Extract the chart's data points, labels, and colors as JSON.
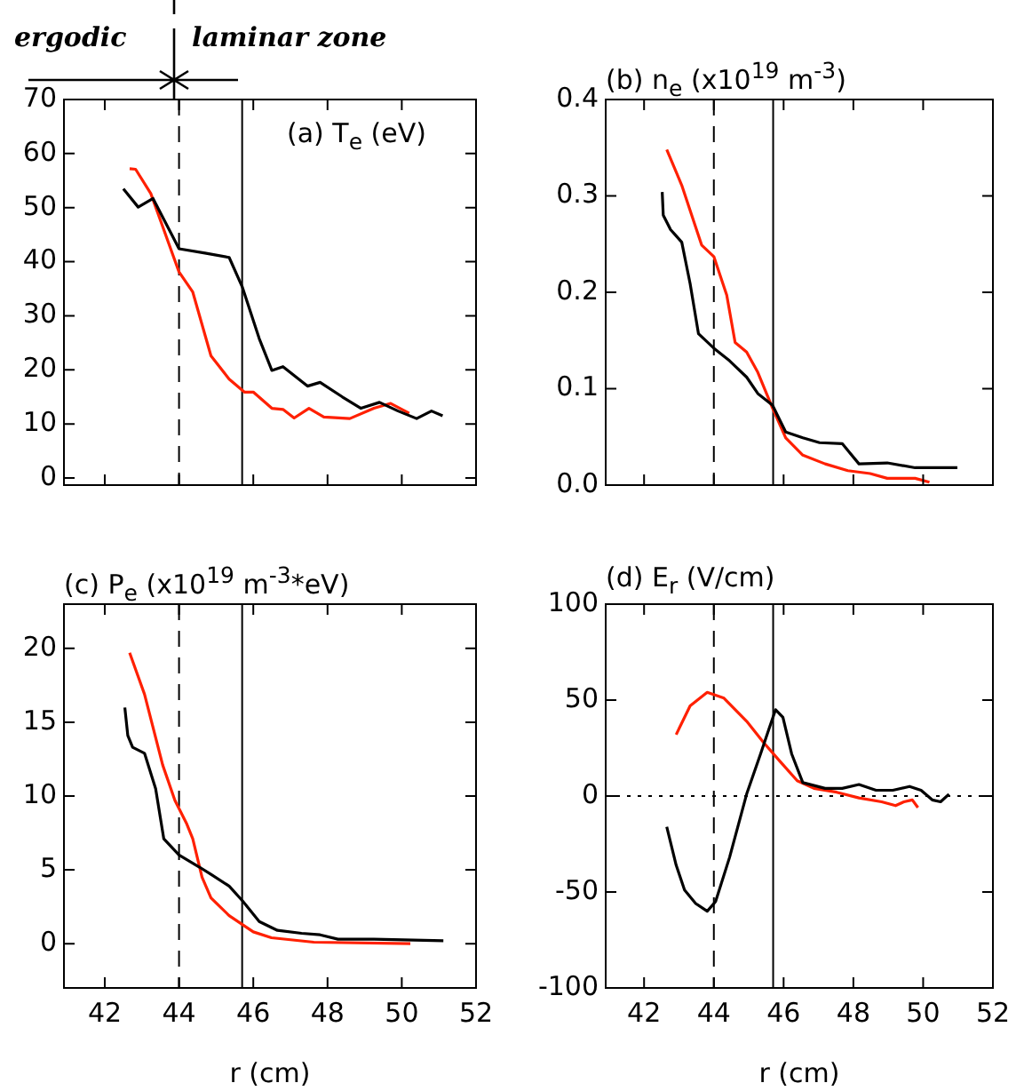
{
  "chart_data": [
    {
      "type": "line",
      "title": "(a) T$_{e}$ (eV)",
      "annotations": [
        "ergodic",
        "laminar zone"
      ],
      "xlim": [
        40.9,
        52
      ],
      "xticks": [
        42,
        44,
        46,
        48,
        50,
        52
      ],
      "ylim": [
        -1.3,
        70
      ],
      "yticks": [
        0,
        10,
        20,
        30,
        40,
        50,
        60,
        70
      ],
      "tick_labels": "y",
      "legend": false,
      "grid": false,
      "marker": "none",
      "line_style": "solid",
      "ref_lines": [
        {
          "axis": "x",
          "value": 44,
          "line_style": "dashed",
          "color": "#000000"
        },
        {
          "axis": "x",
          "value": 45.7,
          "line_style": "solid",
          "color": "#000000"
        }
      ],
      "series": [
        {
          "color": "#000000",
          "x": [
            42.5,
            42.9,
            43.3,
            44,
            44.7,
            45.35,
            45.7,
            46.16,
            46.5,
            46.8,
            47.46,
            47.8,
            48.4,
            48.9,
            49.4,
            49.9,
            50.4,
            50.8,
            51.1
          ],
          "values": [
            53.5,
            50.1,
            51.7,
            42.4,
            41.6,
            40.8,
            35.4,
            25.8,
            19.9,
            20.6,
            17,
            17.7,
            15,
            12.9,
            14,
            12.4,
            11,
            12.4,
            11.5
          ]
        },
        {
          "color": "#ff2000",
          "x": [
            42.67,
            42.83,
            43.24,
            44,
            44.37,
            44.86,
            45.35,
            45.76,
            46,
            46.5,
            46.8,
            47.1,
            47.5,
            47.9,
            48.6,
            49.25,
            49.7,
            50.2
          ],
          "values": [
            57.2,
            57.1,
            52.6,
            38.1,
            34.4,
            22.6,
            18.3,
            15.9,
            15.9,
            12.9,
            12.7,
            11.1,
            12.9,
            11.3,
            11,
            12.9,
            13.8,
            12
          ]
        }
      ]
    },
    {
      "type": "line",
      "title": "(b) n$_{e}$ (x10$^{19}$ m$^{-3}$)",
      "xlim": [
        40.9,
        52
      ],
      "xticks": [
        42,
        44,
        46,
        48,
        50,
        52
      ],
      "ylim": [
        0,
        0.4
      ],
      "yticks": [
        {
          "value": 0,
          "label": "0.0"
        },
        0.1,
        0.2,
        0.3,
        0.4
      ],
      "tick_labels": "y",
      "legend": false,
      "grid": false,
      "marker": "none",
      "line_style": "solid",
      "ref_lines": [
        {
          "axis": "x",
          "value": 44,
          "line_style": "dashed",
          "color": "#000000"
        },
        {
          "axis": "x",
          "value": 45.7,
          "line_style": "solid",
          "color": "#000000"
        }
      ],
      "series": [
        {
          "color": "#000000",
          "x": [
            42.52,
            42.55,
            42.76,
            43.08,
            43.32,
            43.56,
            44,
            44.45,
            44.94,
            45.26,
            45.68,
            46.06,
            46.55,
            47.03,
            47.68,
            48.16,
            48.97,
            49.77,
            50.98
          ],
          "values": [
            0.304,
            0.28,
            0.265,
            0.252,
            0.209,
            0.157,
            0.142,
            0.129,
            0.112,
            0.095,
            0.083,
            0.055,
            0.049,
            0.044,
            0.043,
            0.022,
            0.023,
            0.018,
            0.018
          ]
        },
        {
          "color": "#ff2000",
          "x": [
            42.65,
            43.08,
            43.65,
            44,
            44.37,
            44.61,
            44.94,
            45.26,
            45.68,
            46.06,
            46.55,
            47.19,
            47.84,
            48.48,
            48.97,
            49.77,
            50.18
          ],
          "values": [
            0.348,
            0.311,
            0.249,
            0.237,
            0.197,
            0.148,
            0.138,
            0.117,
            0.08,
            0.049,
            0.031,
            0.022,
            0.015,
            0.012,
            0.007,
            0.007,
            0.003
          ]
        }
      ]
    },
    {
      "type": "line",
      "title": "(c) P$_{e}$ (x10$^{19}$ m$^{-3}$*eV)",
      "xlabel": "r (cm)",
      "xlim": [
        40.9,
        52
      ],
      "xticks": [
        42,
        44,
        46,
        48,
        50,
        52
      ],
      "ylim": [
        -3,
        23
      ],
      "yticks": [
        0,
        5,
        10,
        15,
        20
      ],
      "legend": false,
      "grid": false,
      "marker": "none",
      "line_style": "solid",
      "ref_lines": [
        {
          "axis": "x",
          "value": 44,
          "line_style": "dashed",
          "color": "#000000"
        },
        {
          "axis": "x",
          "value": 45.7,
          "line_style": "solid",
          "color": "#000000"
        }
      ],
      "series": [
        {
          "color": "#000000",
          "x": [
            42.54,
            42.62,
            42.75,
            43.07,
            43.37,
            43.59,
            44,
            44.54,
            44.86,
            45.35,
            45.71,
            46.16,
            46.65,
            47.3,
            47.8,
            48.28,
            49.25,
            51.12
          ],
          "values": [
            16,
            14.1,
            13.3,
            12.9,
            10.5,
            7.1,
            6,
            5.2,
            4.7,
            3.9,
            2.9,
            1.5,
            0.9,
            0.7,
            0.6,
            0.3,
            0.3,
            0.2
          ]
        },
        {
          "color": "#ff2000",
          "x": [
            42.67,
            43.07,
            43.56,
            43.89,
            44.21,
            44.37,
            44.62,
            44.86,
            45.35,
            46,
            46.49,
            47.63,
            50.23
          ],
          "values": [
            19.7,
            16.9,
            12.1,
            9.7,
            8.1,
            7.1,
            4.5,
            3.1,
            1.9,
            0.8,
            0.4,
            0.1,
            0
          ]
        }
      ]
    },
    {
      "type": "line",
      "title": "(d) E$_{r}$ (V/cm)",
      "xlabel": "r (cm)",
      "xlim": [
        40.9,
        52
      ],
      "xticks": [
        42,
        44,
        46,
        48,
        50,
        52
      ],
      "ylim": [
        -100,
        100
      ],
      "yticks": [
        -100,
        -50,
        0,
        50,
        100
      ],
      "legend": false,
      "grid": false,
      "marker": "none",
      "line_style": "solid",
      "ref_lines": [
        {
          "axis": "x",
          "value": 44,
          "line_style": "dashed",
          "color": "#000000"
        },
        {
          "axis": "x",
          "value": 45.7,
          "line_style": "solid",
          "color": "#000000"
        },
        {
          "axis": "y",
          "value": 0,
          "line_style": "dotted",
          "color": "#000000"
        }
      ],
      "series": [
        {
          "color": "#000000",
          "x": [
            42.65,
            42.92,
            43.16,
            43.48,
            43.81,
            44.05,
            44.45,
            44.94,
            45.34,
            45.58,
            45.77,
            45.98,
            46.23,
            46.55,
            47.19,
            47.68,
            48.16,
            48.65,
            49.13,
            49.61,
            49.94,
            50.26,
            50.5,
            50.74
          ],
          "values": [
            -16,
            -36,
            -49,
            -56,
            -60,
            -55,
            -32,
            1,
            22,
            35,
            45,
            41,
            22,
            7,
            4,
            4,
            6,
            3,
            3,
            5,
            3,
            -2,
            -3,
            1
          ]
        },
        {
          "color": "#ff2000",
          "x": [
            42.92,
            43.32,
            43.81,
            44.29,
            44.94,
            45.42,
            45.9,
            46.39,
            46.87,
            47.52,
            48.16,
            48.81,
            49.21,
            49.45,
            49.69,
            49.85
          ],
          "values": [
            32,
            47,
            54,
            51,
            39,
            28,
            18,
            8,
            4,
            2,
            -1,
            -3,
            -5,
            -3,
            -2,
            -6
          ]
        }
      ]
    }
  ]
}
